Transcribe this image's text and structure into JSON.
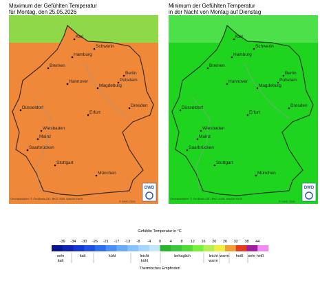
{
  "panels": [
    {
      "title": [
        "Maximum der Gefühlten Temperatur",
        "für Montag, den 25.05.2026"
      ],
      "fill": "#f0883a",
      "sea": "#8fd84a"
    },
    {
      "title": [
        "Minimum der Gefühlten Temperatur",
        "in der Nacht von Montag auf Dienstag"
      ],
      "fill": "#1fd41f",
      "sea": "#4ee04a"
    }
  ],
  "cities": [
    "Kiel",
    "Schwerin",
    "Hamburg",
    "Bremen",
    "Berlin",
    "Potsdam",
    "Hannover",
    "Magdeburg",
    "Düsseldorf",
    "Erfurt",
    "Dresden",
    "Wiesbaden",
    "Mainz",
    "Saarbrücken",
    "Stuttgart",
    "München"
  ],
  "attribution": "Geobasisdaten: © GeoBasis-DE / BKG 2026, Natural Earth",
  "copyright": "© DWD 2026",
  "logo": "DWD",
  "legend": {
    "title": "Gefühlte Temperatur in °C",
    "ticks": [
      "-39",
      "-34",
      "-30",
      "-26",
      "-21",
      "-17",
      "-13",
      "-8",
      "-4",
      "0",
      "4",
      "8",
      "12",
      "16",
      "20",
      "26",
      "32",
      "38",
      "44"
    ],
    "colors": [
      "#0a148c",
      "#0f23b4",
      "#1436d2",
      "#1e50e6",
      "#2d6ef0",
      "#4b8cf5",
      "#69aaf8",
      "#87c3fa",
      "#a5d7fa",
      "#c3e6fa",
      "#2db42d",
      "#3cc83c",
      "#50dc32",
      "#78f03c",
      "#b4f050",
      "#f0f03c",
      "#f0a032",
      "#e63c1e",
      "#a01ea0",
      "#f08cf0"
    ],
    "categories": [
      "sehr kalt",
      "kalt",
      "kühl",
      "leicht kühl",
      "behaglich",
      "leicht warm",
      "warm",
      "heiß",
      "sehr heiß"
    ],
    "axis_title": "Thermisches Empfinden"
  }
}
